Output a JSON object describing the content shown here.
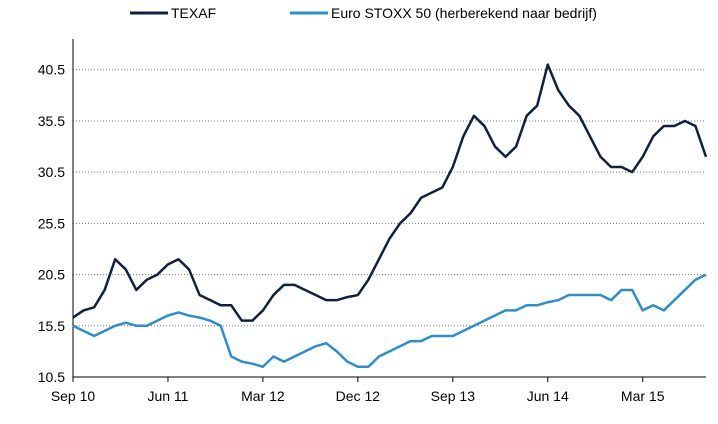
{
  "chart_data": {
    "type": "line",
    "x": [
      "Sep 10",
      "Oct 10",
      "Nov 10",
      "Dec 10",
      "Jan 11",
      "Feb 11",
      "Mar 11",
      "Apr 11",
      "May 11",
      "Jun 11",
      "Jul 11",
      "Aug 11",
      "Sep 11",
      "Oct 11",
      "Nov 11",
      "Dec 11",
      "Jan 12",
      "Feb 12",
      "Mar 12",
      "Apr 12",
      "May 12",
      "Jun 12",
      "Jul 12",
      "Aug 12",
      "Sep 12",
      "Oct 12",
      "Nov 12",
      "Dec 12",
      "Jan 13",
      "Feb 13",
      "Mar 13",
      "Apr 13",
      "May 13",
      "Jun 13",
      "Jul 13",
      "Aug 13",
      "Sep 13",
      "Oct 13",
      "Nov 13",
      "Dec 13",
      "Jan 14",
      "Feb 14",
      "Mar 14",
      "Apr 14",
      "May 14",
      "Jun 14",
      "Jul 14",
      "Aug 14",
      "Sep 14",
      "Oct 14",
      "Nov 14",
      "Dec 14",
      "Jan 15",
      "Feb 15",
      "Mar 15",
      "Apr 15",
      "May 15",
      "Jun 15",
      "Jul 15",
      "Aug 15",
      "Sep 15"
    ],
    "series": [
      {
        "name": "TEXAF",
        "color": "#0d2240",
        "values": [
          16.3,
          17,
          17.3,
          19,
          22,
          21,
          19,
          20,
          20.5,
          21.5,
          22,
          21,
          18.5,
          18,
          17.5,
          17.5,
          16,
          16,
          17,
          18.5,
          19.5,
          19.5,
          19,
          18.5,
          18,
          18,
          18.3,
          18.5,
          20,
          22,
          24,
          25.5,
          26.5,
          28,
          28.5,
          29,
          31,
          34,
          36,
          35,
          33,
          32,
          33,
          36,
          37,
          41,
          38.5,
          37,
          36,
          34,
          32,
          31,
          31,
          30.5,
          32,
          34,
          35,
          35,
          35.5,
          35,
          32
        ]
      },
      {
        "name": "Euro STOXX 50 (herberekend naar bedrijf)",
        "color": "#2a8fd0",
        "values": [
          15.5,
          15,
          14.5,
          15,
          15.5,
          15.8,
          15.5,
          15.5,
          16,
          16.5,
          16.8,
          16.5,
          16.3,
          16,
          15.5,
          12.5,
          12,
          11.8,
          11.5,
          12.5,
          12,
          12.5,
          13,
          13.5,
          13.8,
          13,
          12,
          11.5,
          11.5,
          12.5,
          13,
          13.5,
          14,
          14,
          14.5,
          14.5,
          14.5,
          15,
          15.5,
          16,
          16.5,
          17,
          17,
          17.5,
          17.5,
          17.8,
          18,
          18.5,
          18.5,
          18.5,
          18.5,
          18,
          19,
          19,
          17,
          17.5,
          17,
          18,
          19,
          20,
          20.5
        ]
      }
    ],
    "xticks": [
      "Sep 10",
      "Jun 11",
      "Mar 12",
      "Dec 12",
      "Sep 13",
      "Jun 14",
      "Mar 15"
    ],
    "ylim": [
      10.5,
      43.5
    ],
    "yticks": [
      10.5,
      15.5,
      20.5,
      25.5,
      30.5,
      35.5,
      40.5
    ],
    "grid": true,
    "legend": "top"
  }
}
